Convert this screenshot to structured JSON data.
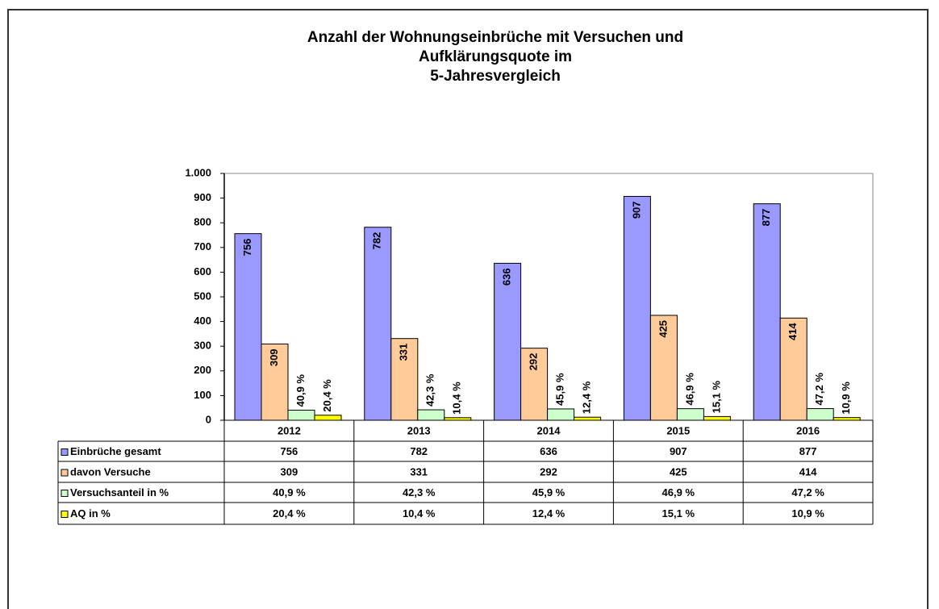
{
  "chart_data": {
    "type": "bar",
    "title": [
      "Anzahl der Wohnungseinbrüche mit Versuchen und",
      "Aufklärungsquote im",
      "5-Jahresvergleich"
    ],
    "categories": [
      "2012",
      "2013",
      "2014",
      "2015",
      "2016"
    ],
    "series": [
      {
        "name": "Einbrüche gesamt",
        "color": "#9999ff",
        "values": [
          756,
          782,
          636,
          907,
          877
        ]
      },
      {
        "name": "davon Versuche",
        "color": "#ffcc99",
        "values": [
          309,
          331,
          292,
          425,
          414
        ]
      },
      {
        "name": "Versuchsanteil in %",
        "color": "#ccffcc",
        "values": [
          40.9,
          42.3,
          45.9,
          46.9,
          47.2
        ],
        "value_labels": [
          "40,9 %",
          "42,3 %",
          "45,9 %",
          "46,9 %",
          "47,2 %"
        ]
      },
      {
        "name": "AQ in %",
        "color": "#ffff00",
        "values": [
          20.4,
          10.4,
          12.4,
          15.1,
          10.9
        ],
        "value_labels": [
          "20,4 %",
          "10,4 %",
          "12,4 %",
          "15,1 %",
          "10,9 %"
        ]
      }
    ],
    "ylim": [
      0,
      1000
    ],
    "yticks": [
      0,
      100,
      200,
      300,
      400,
      500,
      600,
      700,
      800,
      900,
      {
        "value": 1000,
        "label": "1.000"
      }
    ],
    "grid": false,
    "data_table": true
  }
}
